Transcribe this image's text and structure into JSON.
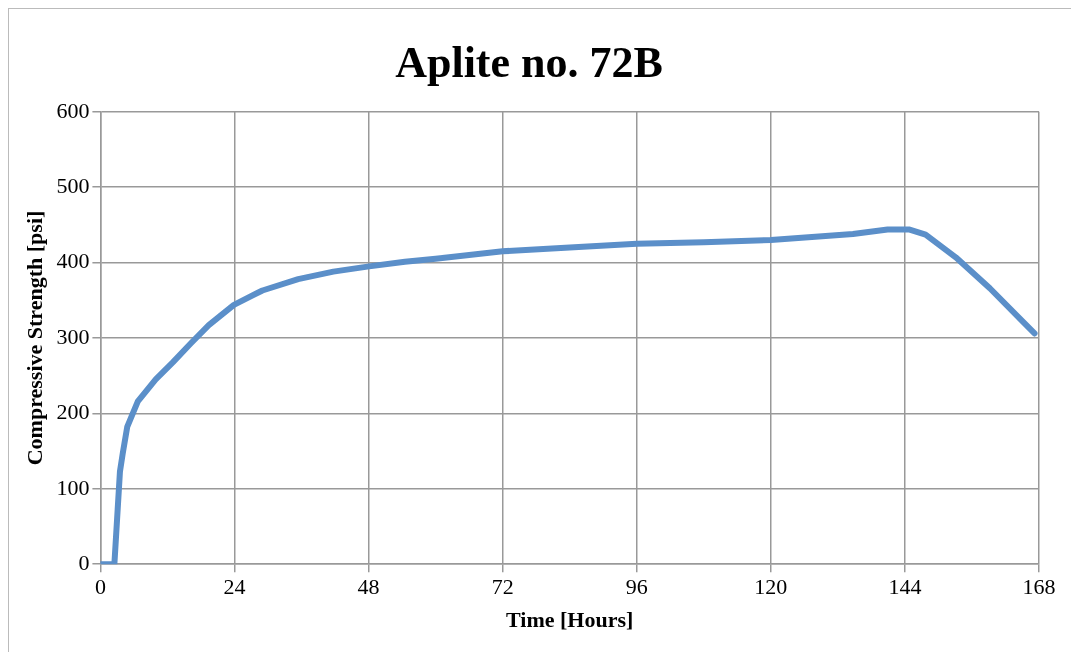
{
  "chart_data": {
    "type": "line",
    "title": "Aplite no. 72B",
    "xlabel": "Time [Hours]",
    "ylabel": "Compressive Strength [psi]",
    "x": [
      0,
      2.5,
      3.5,
      4.0,
      4.8,
      6.7,
      9.9,
      13,
      16.2,
      19.4,
      23.9,
      29,
      35.4,
      41.7,
      48.1,
      54.5,
      60,
      72,
      84,
      96,
      108,
      120,
      134.7,
      140.9,
      144.7,
      147.7,
      153.1,
      159.2,
      167.2
    ],
    "series": [
      {
        "color": "#5b8fc9",
        "values": [
          0,
          0,
          123,
          147,
          182,
          216,
          245,
          268,
          293,
          317,
          344,
          363,
          378,
          388,
          395,
          401,
          405,
          415,
          420,
          425,
          427,
          430,
          438,
          444,
          444,
          437,
          407,
          366,
          306
        ]
      }
    ],
    "xlim": [
      0,
      168
    ],
    "xticks": [
      0,
      24,
      48,
      72,
      96,
      120,
      144,
      168
    ],
    "ylim": [
      0,
      600
    ],
    "yticks": [
      0,
      100,
      200,
      300,
      400,
      500,
      600
    ],
    "grid": true,
    "legend": false,
    "marker": "none",
    "line_style": "solid"
  }
}
